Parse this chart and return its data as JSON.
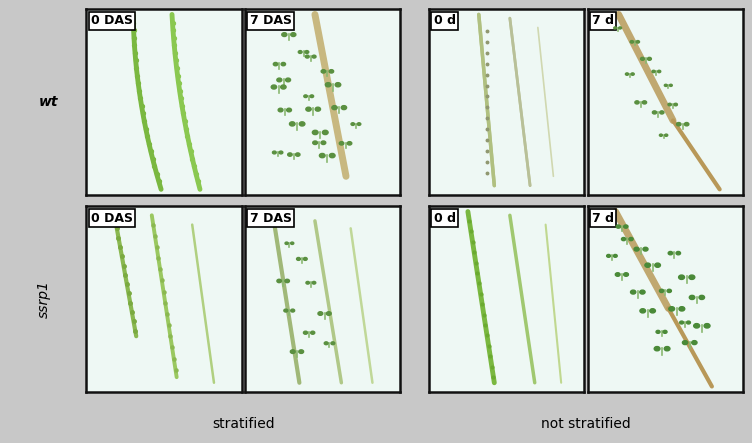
{
  "panel_labels": [
    [
      "0 DAS",
      "7 DAS",
      "0 d",
      "7 d"
    ],
    [
      "0 DAS",
      "7 DAS",
      "0 d",
      "7 d"
    ]
  ],
  "row_labels": [
    "wt",
    "ssrp1"
  ],
  "col_group_labels": [
    "stratified",
    "not stratified"
  ],
  "col_group_label_fontsize": 10,
  "row_label_fontsize": 10,
  "panel_label_fontsize": 9,
  "panel_label_fontweight": "bold",
  "panel_bg": "#eef8f4",
  "figure_bg": "#c8c8c8",
  "border_color": "#111111",
  "silique_green": "#7ab648",
  "silique_green2": "#8cc060",
  "silique_green3": "#9acc70",
  "silique_beige": "#c8b888",
  "seedling_green": "#5a9040",
  "cotyledon_green": "#6aaa4a",
  "seed_green": "#7ab840"
}
